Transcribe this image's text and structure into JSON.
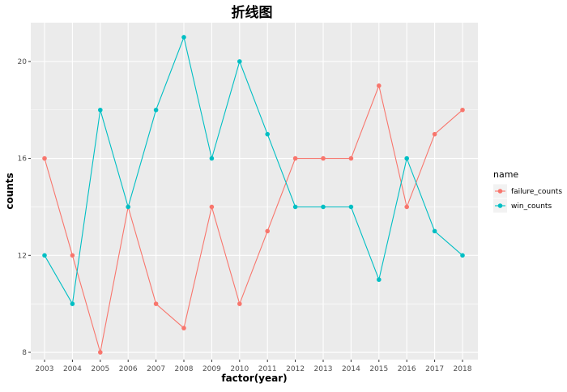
{
  "chart_data": {
    "type": "line",
    "title": "折线图",
    "xlabel": "factor(year)",
    "ylabel": "counts",
    "categories": [
      "2003",
      "2004",
      "2005",
      "2006",
      "2007",
      "2008",
      "2009",
      "2010",
      "2011",
      "2012",
      "2013",
      "2014",
      "2015",
      "2016",
      "2017",
      "2018"
    ],
    "series": [
      {
        "name": "failure_counts",
        "color": "#F8766D",
        "values": [
          16,
          12,
          8,
          14,
          10,
          9,
          14,
          10,
          13,
          16,
          16,
          16,
          19,
          14,
          17,
          18
        ]
      },
      {
        "name": "win_counts",
        "color": "#00BFC4",
        "values": [
          12,
          10,
          18,
          14,
          18,
          21,
          16,
          20,
          17,
          14,
          14,
          14,
          11,
          16,
          13,
          12
        ]
      }
    ],
    "ylim": [
      7.7,
      21.6
    ],
    "yticks": [
      8,
      12,
      16,
      20
    ],
    "grid": true,
    "panel_background": "#EBEBEB",
    "grid_color": "#FFFFFF",
    "legend": {
      "title": "name",
      "position": "right"
    }
  }
}
